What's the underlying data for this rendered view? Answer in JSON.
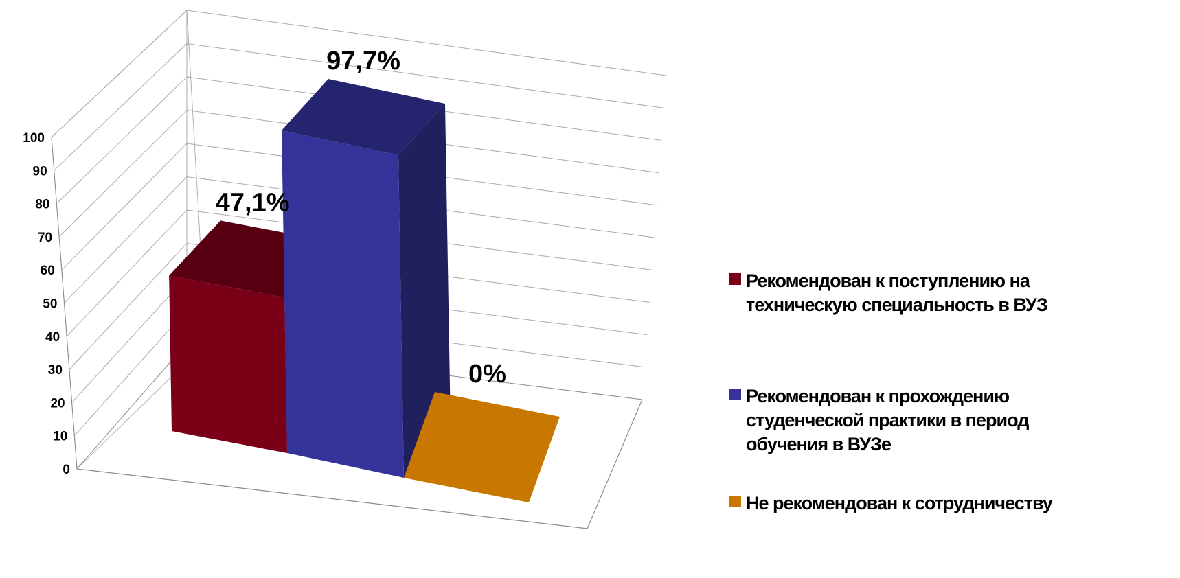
{
  "chart_data": {
    "type": "bar",
    "style": "3d",
    "categories": [
      "Рекомендован к поступлению на техническую специальность в ВУЗ",
      "Рекомендован к прохождению студенческой практики в период обучения в ВУЗе",
      "Не рекомендован к сотрудничеству"
    ],
    "values": [
      47.1,
      97.7,
      0
    ],
    "data_labels": [
      "47,1%",
      "97,7%",
      "0%"
    ],
    "colors": [
      "#7a0018",
      "#33339a",
      "#c87800"
    ],
    "yticks": [
      "0",
      "10",
      "20",
      "30",
      "40",
      "50",
      "60",
      "70",
      "80",
      "90",
      "100"
    ],
    "ylim": [
      0,
      100
    ],
    "grid": true,
    "legend": {
      "placement": "right",
      "items": [
        {
          "lines": [
            "Рекомендован к поступлению на",
            "техническую специальность в ВУЗ"
          ],
          "color": "#7a0018"
        },
        {
          "lines": [
            "Рекомендован к прохождению",
            "студенческой практики в период",
            "обучения в ВУЗе"
          ],
          "color": "#33339a"
        },
        {
          "lines": [
            "Не рекомендован к сотрудничеству"
          ],
          "color": "#c87800"
        }
      ]
    }
  }
}
